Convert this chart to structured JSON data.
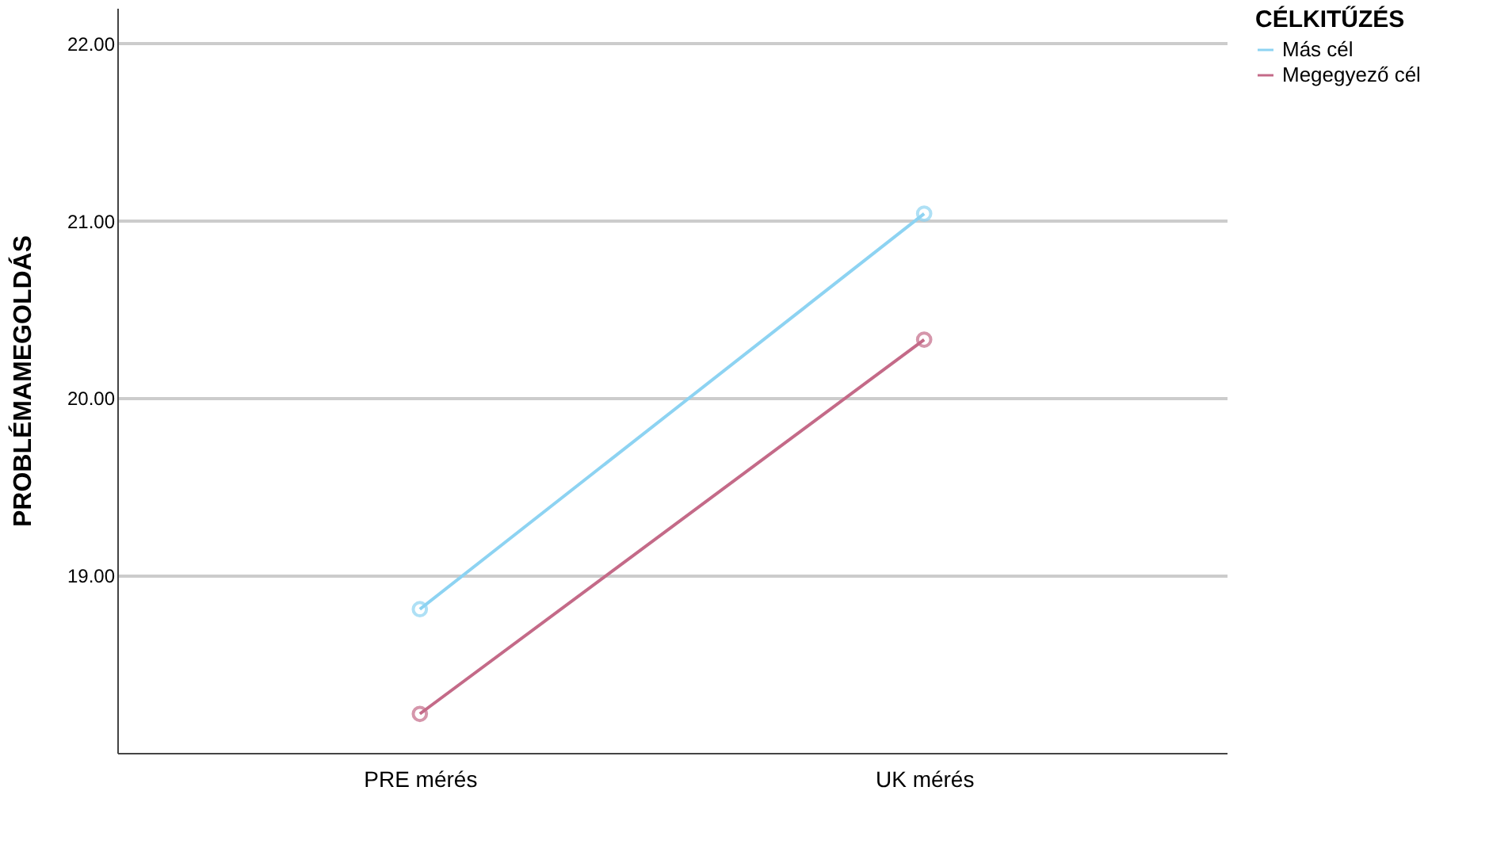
{
  "chart_data": {
    "type": "line",
    "ylabel": "PROBLÉMAMEGOLDÁS",
    "legend_title": "CÉLKITŰZÉS",
    "categories": [
      "PRE mérés",
      "UK mérés"
    ],
    "series": [
      {
        "name": "Más cél",
        "color": "#8dd3f2",
        "values": [
          18.81,
          21.04
        ]
      },
      {
        "name": "Megegyező cél",
        "color": "#c46a88",
        "values": [
          18.22,
          20.33
        ]
      }
    ],
    "ylim": [
      18,
      22.2
    ],
    "yticks": [
      {
        "value": 19,
        "label": "19.00"
      },
      {
        "value": 20,
        "label": "20.00"
      },
      {
        "value": 21,
        "label": "21.00"
      },
      {
        "value": 22,
        "label": "22.00"
      }
    ],
    "grid": "y",
    "legend": "top right",
    "marker": "circle",
    "line_style": "solid"
  }
}
